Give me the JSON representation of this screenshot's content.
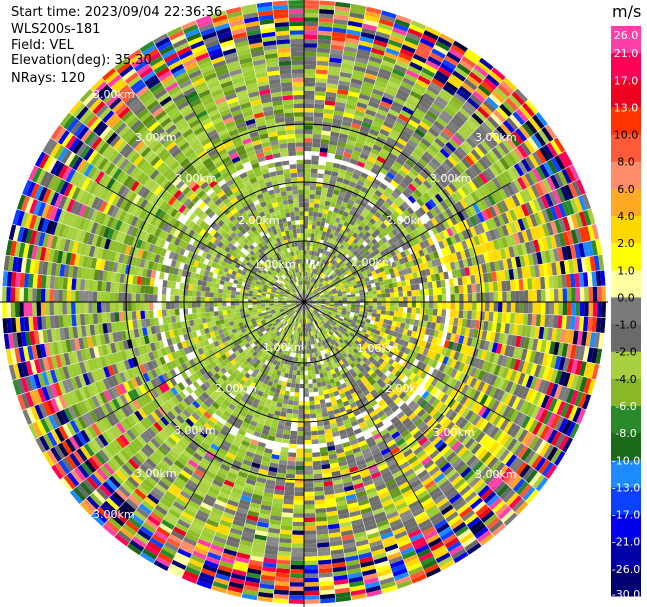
{
  "header": {
    "start_time": "Start time: 2023/09/04 22:36:36",
    "station": "WLS200s-181",
    "field": "Field: VEL",
    "elevation": "Elevation(deg): 35.30",
    "nrays": "NRays: 120"
  },
  "chart_data": {
    "type": "heatmap",
    "subtype": "radar-ppi",
    "field": "VEL",
    "units": "m/s",
    "n_rays": 120,
    "elevation_deg": 35.3,
    "max_range_km": 3.5,
    "range_rings_km": [
      1.0,
      2.0,
      3.0
    ],
    "ring_labels": [
      "1.00km",
      "2.00km",
      "3.00km"
    ],
    "colorbar": {
      "label": "m/s",
      "ticks": [
        "26.0",
        "21.0",
        "17.0",
        "13.0",
        "10.0",
        "8.0",
        "6.0",
        "4.0",
        "2.0",
        "1.0",
        "0.0",
        "-1.0",
        "-2.0",
        "-4.0",
        "-6.0",
        "-8.0",
        "-10.0",
        "-13.0",
        "-17.0",
        "-21.0",
        "-26.0",
        "-30.0"
      ],
      "colors": [
        "#ff3fa8",
        "#ff0055",
        "#ee0020",
        "#ff3300",
        "#ff5a3a",
        "#ff8c6a",
        "#ffaa22",
        "#ffd800",
        "#ffff00",
        "#ffffa0",
        "#7a7a7a",
        "#6a6a6a",
        "#a8d040",
        "#88b828",
        "#2a8a2a",
        "#1a6a1a",
        "#1e8aff",
        "#0a40ff",
        "#0000ee",
        "#0000a8",
        "#000070",
        "#000040"
      ]
    },
    "zones": [
      {
        "name": "inner",
        "range_km": [
          0.0,
          1.65
        ],
        "dominant": "gray / light-green with yellow patches"
      },
      {
        "name": "middle",
        "range_km": [
          1.65,
          3.0
        ],
        "dominant": "green and gray, yellow to the east and south-east"
      },
      {
        "name": "outer",
        "range_km": [
          3.0,
          3.5
        ],
        "dominant": "noise, all colors"
      }
    ]
  }
}
